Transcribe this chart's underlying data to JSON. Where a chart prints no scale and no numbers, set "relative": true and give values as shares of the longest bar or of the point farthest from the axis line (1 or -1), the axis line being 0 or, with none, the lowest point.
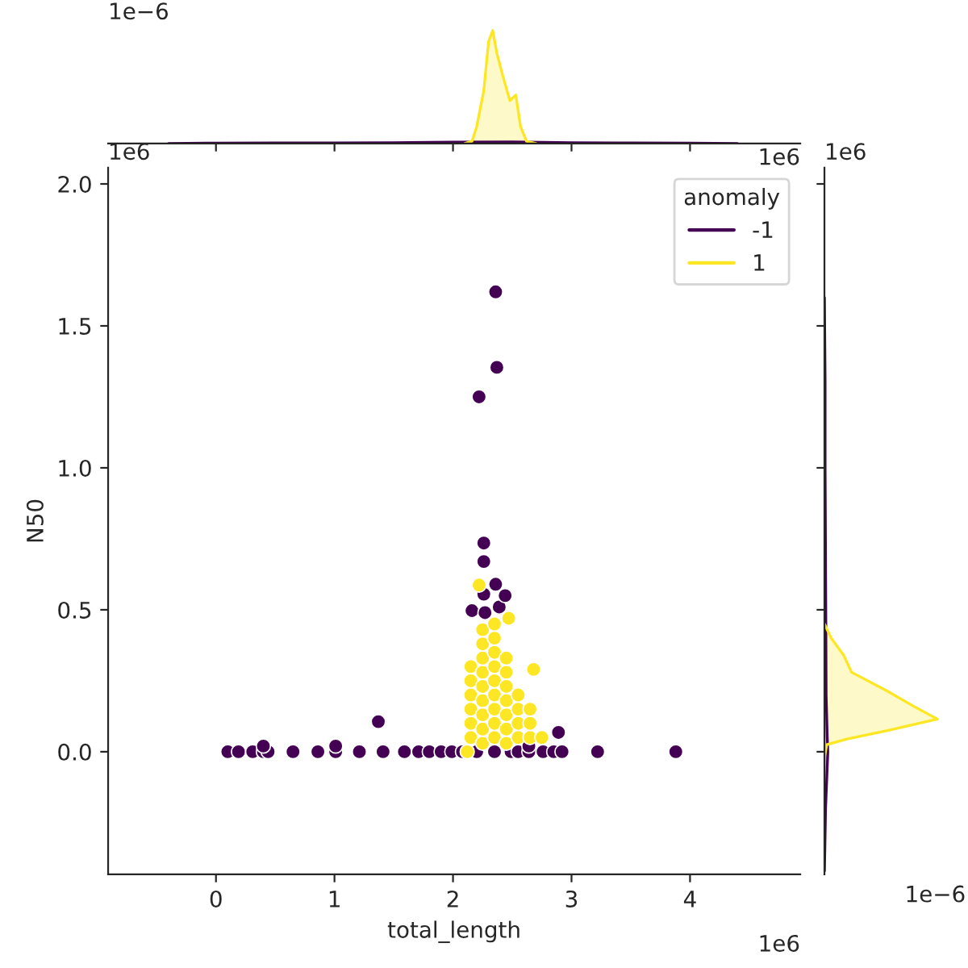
{
  "chart_data": [
    {
      "type": "scatter",
      "xlabel": "total_length",
      "ylabel": "N50",
      "legend_title": "anomaly",
      "legend": "top right",
      "marker": "circle",
      "grid": false,
      "annotations": [
        "1e6",
        "1e6"
      ],
      "xlim": [
        -0.91,
        4.93
      ],
      "xticks": [
        0,
        1,
        2,
        3,
        4
      ],
      "ylim": [
        -0.432,
        2.057
      ],
      "yticks": [
        {
          "value": 0,
          "label": "0.0"
        },
        {
          "value": 0.5,
          "label": "0.5"
        },
        {
          "value": 1,
          "label": "1.0"
        },
        {
          "value": 1.5,
          "label": "1.5"
        },
        {
          "value": 2,
          "label": "2.0"
        }
      ],
      "series": [
        {
          "name": "-1",
          "color": "#440154",
          "x": [
            0.1,
            0.19,
            0.31,
            0.4,
            0.44,
            0.65,
            0.86,
            1.01,
            1.21,
            1.41,
            1.59,
            1.71,
            1.8,
            1.9,
            1.99,
            2.08,
            2.2,
            2.35,
            2.49,
            2.55,
            2.64,
            2.76,
            2.85,
            2.92,
            3.22,
            3.88,
            0.4,
            1.01,
            1.37,
            2.89,
            2.64,
            2.26,
            2.26,
            2.36,
            2.16,
            2.27,
            2.39,
            2.44,
            2.26,
            2.36,
            2.37,
            2.22
          ],
          "values": [
            0,
            0,
            0,
            0,
            0,
            0,
            0,
            0,
            0,
            0,
            0,
            0,
            0,
            0,
            0,
            0,
            0,
            0,
            0,
            0,
            0,
            0,
            0,
            0,
            0,
            0,
            0.02,
            0.02,
            0.106,
            0.068,
            0.02,
            0.735,
            0.67,
            0.59,
            0.497,
            0.49,
            0.51,
            0.55,
            0.555,
            1.62,
            1.354,
            1.25
          ]
        },
        {
          "name": "1",
          "color": "#fde725",
          "x": [
            2.12,
            2.22,
            2.47,
            2.68,
            2.15,
            2.15,
            2.15,
            2.15,
            2.15,
            2.15,
            2.25,
            2.25,
            2.25,
            2.25,
            2.25,
            2.25,
            2.25,
            2.25,
            2.25,
            2.35,
            2.35,
            2.35,
            2.35,
            2.35,
            2.35,
            2.35,
            2.35,
            2.35,
            2.45,
            2.45,
            2.45,
            2.45,
            2.45,
            2.45,
            2.45,
            2.55,
            2.55,
            2.55,
            2.55,
            2.65,
            2.65,
            2.65,
            2.75
          ],
          "values": [
            0,
            0.587,
            0.47,
            0.29,
            0.05,
            0.1,
            0.15,
            0.2,
            0.25,
            0.3,
            0.03,
            0.08,
            0.13,
            0.18,
            0.23,
            0.28,
            0.33,
            0.38,
            0.43,
            0.05,
            0.1,
            0.15,
            0.2,
            0.25,
            0.3,
            0.35,
            0.4,
            0.45,
            0.03,
            0.08,
            0.13,
            0.18,
            0.23,
            0.28,
            0.33,
            0.05,
            0.1,
            0.15,
            0.2,
            0.05,
            0.1,
            0.15,
            0.05
          ]
        }
      ]
    },
    {
      "type": "area",
      "relative": true,
      "tick_labels": false,
      "annotations": [
        "1e−6",
        "1e6"
      ],
      "xlim": [
        -0.91,
        4.93
      ],
      "xticks": [
        0,
        1,
        2,
        3,
        4
      ],
      "series": [
        {
          "color": "#440154",
          "x": [
            -0.4,
            0,
            0.5,
            1.0,
            1.5,
            2.0,
            2.5,
            3.0,
            3.5,
            4.0,
            4.4
          ],
          "values": [
            0,
            0.004,
            0.006,
            0.006,
            0.008,
            0.012,
            0.014,
            0.008,
            0.005,
            0.004,
            0
          ]
        },
        {
          "color": "#fde725",
          "x": [
            2.1,
            2.16,
            2.2,
            2.26,
            2.3,
            2.335,
            2.37,
            2.42,
            2.48,
            2.53,
            2.57,
            2.62,
            2.7
          ],
          "values": [
            0,
            0.02,
            0.15,
            0.47,
            0.9,
            1,
            0.8,
            0.6,
            0.38,
            0.43,
            0.15,
            0.02,
            0
          ]
        }
      ]
    },
    {
      "type": "area",
      "relative": true,
      "orientation": "horizontal",
      "tick_labels": false,
      "annotations": [
        "1e6",
        "1e−6"
      ],
      "ylim": [
        -0.432,
        2.057
      ],
      "yticks": [
        0.0,
        0.5,
        1.0,
        1.5,
        2.0
      ],
      "series": [
        {
          "color": "#440154",
          "x": [
            -0.42,
            -0.2,
            -0.05,
            0,
            0.05,
            0.2,
            0.5,
            1.0,
            1.3,
            1.6
          ],
          "values": [
            0,
            0.01,
            0.025,
            0.03,
            0.025,
            0.015,
            0.012,
            0.006,
            0.006,
            0
          ]
        },
        {
          "color": "#fde725",
          "x": [
            -0.02,
            0.025,
            0.045,
            0.074,
            0.115,
            0.16,
            0.215,
            0.28,
            0.34,
            0.4,
            0.45
          ],
          "values": [
            0,
            0.02,
            0.2,
            0.55,
            1,
            0.79,
            0.55,
            0.24,
            0.17,
            0.06,
            0
          ]
        }
      ]
    }
  ]
}
